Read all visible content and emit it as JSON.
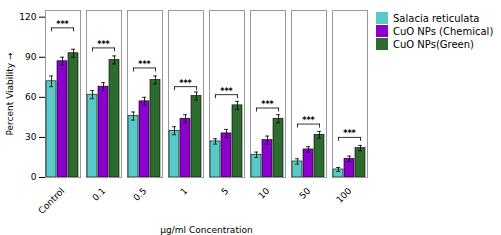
{
  "chart_data": {
    "type": "bar",
    "categories": [
      "Control",
      "0.1",
      "0.5",
      "1",
      "5",
      "10",
      "50",
      "100"
    ],
    "series": [
      {
        "name": "Salacia reticulata",
        "color": "#5BC8C8",
        "values": [
          72,
          62,
          46,
          35,
          27,
          17,
          12,
          6
        ],
        "errors": [
          4,
          3,
          3,
          3,
          2,
          2,
          2,
          1.5
        ]
      },
      {
        "name": "CuO NPs (Chemical)",
        "color": "#8B00CC",
        "values": [
          87,
          68,
          57,
          44,
          33,
          28,
          21,
          14
        ],
        "errors": [
          3,
          3,
          3,
          3,
          3,
          3,
          2,
          2
        ]
      },
      {
        "name": "CuO NPs(Green)",
        "color": "#2E6B2E",
        "values": [
          93,
          88,
          73,
          61,
          54,
          44,
          32,
          22
        ],
        "errors": [
          3,
          3,
          3,
          3,
          3,
          3,
          2.5,
          2
        ]
      }
    ],
    "xlabel": "μg/ml Concentration",
    "ylabel": "Percent Viability",
    "ylim": [
      0,
      125
    ],
    "yticks": [
      0,
      30,
      60,
      90,
      120
    ],
    "annotations": {
      "label": "***",
      "bracket_y": [
        112,
        97,
        82,
        68,
        62,
        52,
        40,
        30
      ],
      "bracket_drop": 3
    },
    "legend": "right",
    "grid": false
  }
}
